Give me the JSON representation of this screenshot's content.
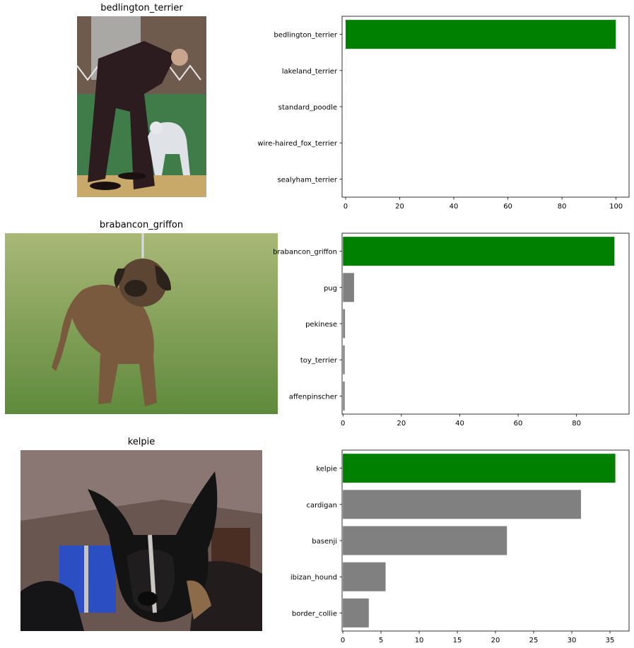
{
  "panels": [
    {
      "title": "bedlington_terrier",
      "photo": {
        "subject": "bedlington-terrier-photo"
      }
    },
    {
      "title": "brabancon_griffon",
      "photo": {
        "subject": "brabancon-griffon-photo"
      }
    },
    {
      "title": "kelpie",
      "photo": {
        "subject": "kelpie-photo"
      }
    }
  ],
  "colors": {
    "predicted": "#008000",
    "other": "#808080",
    "axis": "#000000"
  },
  "chart_data": [
    {
      "type": "bar",
      "orientation": "horizontal",
      "categories": [
        "bedlington_terrier",
        "lakeland_terrier",
        "standard_poodle",
        "wire-haired_fox_terrier",
        "sealyham_terrier"
      ],
      "values": [
        99.9,
        0.03,
        0.02,
        0.01,
        0.01
      ],
      "xlim": [
        -1.3,
        104.8
      ],
      "xticks": [
        0,
        20,
        40,
        60,
        80,
        100
      ],
      "xticklabels": [
        "0",
        "20",
        "40",
        "60",
        "80",
        "100"
      ],
      "highlight": "bedlington_terrier",
      "grid": false
    },
    {
      "type": "bar",
      "orientation": "horizontal",
      "categories": [
        "brabancon_griffon",
        "pug",
        "pekinese",
        "toy_terrier",
        "affenpinscher"
      ],
      "values": [
        93.0,
        3.8,
        0.7,
        0.6,
        0.6
      ],
      "xlim": [
        -0.3,
        98.0
      ],
      "xticks": [
        0,
        20,
        40,
        60,
        80
      ],
      "xticklabels": [
        "0",
        "20",
        "40",
        "60",
        "80"
      ],
      "highlight": "brabancon_griffon",
      "grid": false
    },
    {
      "type": "bar",
      "orientation": "horizontal",
      "categories": [
        "kelpie",
        "cardigan",
        "basenji",
        "ibizan_hound",
        "border_collie"
      ],
      "values": [
        35.7,
        31.2,
        21.5,
        5.6,
        3.4
      ],
      "xlim": [
        -0.1,
        37.5
      ],
      "xticks": [
        0,
        5,
        10,
        15,
        20,
        25,
        30,
        35
      ],
      "xticklabels": [
        "0",
        "5",
        "10",
        "15",
        "20",
        "25",
        "30",
        "35"
      ],
      "highlight": "kelpie",
      "grid": false
    }
  ]
}
